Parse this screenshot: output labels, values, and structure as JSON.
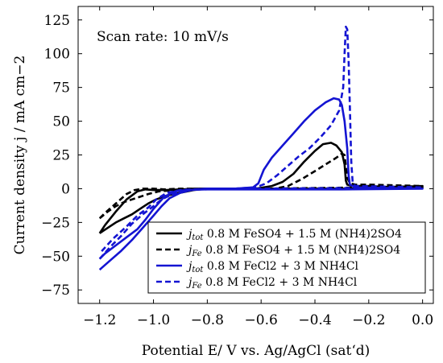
{
  "chart_data": {
    "type": "line",
    "title": "",
    "xlabel": "Potential E/ V vs. Ag/AgCl (sat‘d)",
    "ylabel": "Current density j / mA cm−2",
    "xlim": [
      -1.28,
      0.04
    ],
    "ylim": [
      -85,
      135
    ],
    "x_ticks": [
      -1.2,
      -1.0,
      -0.8,
      -0.6,
      -0.4,
      -0.2,
      0.0
    ],
    "x_tick_labels": [
      "−1.2",
      "−1.0",
      "−0.8",
      "−0.6",
      "−0.4",
      "−0.2",
      "0.0"
    ],
    "y_ticks": [
      -75,
      -50,
      -25,
      0,
      25,
      50,
      75,
      100,
      125
    ],
    "y_tick_labels": [
      "−75",
      "−50",
      "−25",
      "0",
      "25",
      "50",
      "75",
      "100",
      "125"
    ],
    "grid": false,
    "legend_position": "bottom-right",
    "annotation": "Scan rate: 10 mV/s",
    "series": [
      {
        "name": "jtot 0.8 M FeSO4 + 1.5 M (NH4)2SO4",
        "legend_label": {
          "sym": "j",
          "sub": "tot",
          "text": " 0.8 M FeSO4 + 1.5 M (NH4)2SO4"
        },
        "color": "#000000",
        "dash": "solid",
        "points": [
          [
            -1.2,
            -33
          ],
          [
            -1.17,
            -29
          ],
          [
            -1.14,
            -25
          ],
          [
            -1.11,
            -22
          ],
          [
            -1.08,
            -19
          ],
          [
            -1.05,
            -15
          ],
          [
            -1.02,
            -11
          ],
          [
            -0.99,
            -8
          ],
          [
            -0.95,
            -5
          ],
          [
            -0.9,
            -3
          ],
          [
            -0.85,
            -1
          ],
          [
            -0.8,
            0
          ],
          [
            -0.7,
            0
          ],
          [
            -0.62,
            0
          ],
          [
            -0.56,
            2
          ],
          [
            -0.52,
            5
          ],
          [
            -0.48,
            11
          ],
          [
            -0.44,
            20
          ],
          [
            -0.4,
            28
          ],
          [
            -0.37,
            33
          ],
          [
            -0.34,
            34
          ],
          [
            -0.32,
            32
          ],
          [
            -0.3,
            27
          ],
          [
            -0.29,
            18
          ],
          [
            -0.285,
            6
          ],
          [
            -0.28,
            3
          ],
          [
            -0.26,
            2
          ],
          [
            -0.2,
            2
          ],
          [
            -0.1,
            1
          ],
          [
            0.0,
            1
          ],
          [
            -0.1,
            0.5
          ],
          [
            -0.2,
            0.5
          ],
          [
            -0.28,
            0
          ],
          [
            -0.4,
            0
          ],
          [
            -0.6,
            0
          ],
          [
            -0.8,
            0
          ],
          [
            -0.9,
            -0.5
          ],
          [
            -0.95,
            -1
          ],
          [
            -1.0,
            -1
          ],
          [
            -1.03,
            -0.5
          ],
          [
            -1.06,
            -2
          ],
          [
            -1.1,
            -8
          ],
          [
            -1.14,
            -17
          ],
          [
            -1.18,
            -27
          ],
          [
            -1.2,
            -33
          ]
        ]
      },
      {
        "name": "jFe 0.8 M FeSO4 + 1.5 M (NH4)2SO4",
        "legend_label": {
          "sym": "j",
          "sub": "Fe",
          "text": " 0.8 M FeSO4 + 1.5 M (NH4)2SO4"
        },
        "color": "#000000",
        "dash": "dashed",
        "points": [
          [
            -1.2,
            -22
          ],
          [
            -1.17,
            -17
          ],
          [
            -1.14,
            -13
          ],
          [
            -1.11,
            -10
          ],
          [
            -1.08,
            -8
          ],
          [
            -1.05,
            -6
          ],
          [
            -1.02,
            -4
          ],
          [
            -0.98,
            -2
          ],
          [
            -0.92,
            -1
          ],
          [
            -0.85,
            0
          ],
          [
            -0.7,
            0
          ],
          [
            -0.6,
            0
          ],
          [
            -0.55,
            0
          ],
          [
            -0.5,
            2
          ],
          [
            -0.45,
            7
          ],
          [
            -0.4,
            13
          ],
          [
            -0.36,
            18
          ],
          [
            -0.32,
            23
          ],
          [
            -0.3,
            26
          ],
          [
            -0.29,
            25
          ],
          [
            -0.28,
            8
          ],
          [
            -0.27,
            4
          ],
          [
            -0.25,
            3
          ],
          [
            -0.2,
            3
          ],
          [
            0.0,
            2
          ],
          [
            -0.2,
            1
          ],
          [
            -0.4,
            0.5
          ],
          [
            -0.6,
            0
          ],
          [
            -0.8,
            0
          ],
          [
            -0.9,
            0
          ],
          [
            -0.96,
            -0.5
          ],
          [
            -1.0,
            0
          ],
          [
            -1.04,
            0
          ],
          [
            -1.07,
            -1
          ],
          [
            -1.1,
            -4
          ],
          [
            -1.14,
            -11
          ],
          [
            -1.18,
            -18
          ],
          [
            -1.2,
            -22
          ]
        ]
      },
      {
        "name": "jtot 0.8 M FeCl2 + 3 M NH4Cl",
        "legend_label": {
          "sym": "j",
          "sub": "tot",
          "text": " 0.8 M FeCl2 + 3 M NH4Cl"
        },
        "color": "#1414d2",
        "dash": "solid",
        "points": [
          [
            -1.2,
            -60
          ],
          [
            -1.16,
            -53
          ],
          [
            -1.12,
            -46
          ],
          [
            -1.08,
            -38
          ],
          [
            -1.04,
            -29
          ],
          [
            -1.0,
            -20
          ],
          [
            -0.97,
            -13
          ],
          [
            -0.94,
            -7
          ],
          [
            -0.9,
            -3
          ],
          [
            -0.86,
            -1
          ],
          [
            -0.8,
            0
          ],
          [
            -0.7,
            0
          ],
          [
            -0.63,
            1
          ],
          [
            -0.61,
            4
          ],
          [
            -0.59,
            14
          ],
          [
            -0.56,
            23
          ],
          [
            -0.52,
            32
          ],
          [
            -0.48,
            41
          ],
          [
            -0.44,
            50
          ],
          [
            -0.4,
            58
          ],
          [
            -0.36,
            64
          ],
          [
            -0.33,
            67
          ],
          [
            -0.31,
            66
          ],
          [
            -0.3,
            62
          ],
          [
            -0.29,
            50
          ],
          [
            -0.28,
            30
          ],
          [
            -0.275,
            10
          ],
          [
            -0.27,
            3
          ],
          [
            -0.25,
            1
          ],
          [
            0.0,
            0
          ],
          [
            -0.3,
            -0.5
          ],
          [
            -0.6,
            -0.5
          ],
          [
            -0.8,
            -0.5
          ],
          [
            -0.88,
            -1
          ],
          [
            -0.92,
            -2
          ],
          [
            -0.96,
            -6
          ],
          [
            -1.0,
            -15
          ],
          [
            -1.03,
            -23
          ],
          [
            -1.06,
            -30
          ],
          [
            -1.1,
            -36
          ],
          [
            -1.14,
            -42
          ],
          [
            -1.18,
            -48
          ],
          [
            -1.2,
            -52
          ]
        ]
      },
      {
        "name": "jFe 0.8 M FeCl2 + 3 M NH4Cl",
        "legend_label": {
          "sym": "j",
          "sub": "Fe",
          "text": " 0.8 M FeCl2 + 3 M NH4Cl"
        },
        "color": "#1414d2",
        "dash": "dashed",
        "points": [
          [
            -1.2,
            -52
          ],
          [
            -1.16,
            -43
          ],
          [
            -1.12,
            -35
          ],
          [
            -1.08,
            -26
          ],
          [
            -1.04,
            -19
          ],
          [
            -1.0,
            -13
          ],
          [
            -0.97,
            -8
          ],
          [
            -0.94,
            -5
          ],
          [
            -0.9,
            -2
          ],
          [
            -0.86,
            -1
          ],
          [
            -0.8,
            0
          ],
          [
            -0.7,
            0
          ],
          [
            -0.62,
            1
          ],
          [
            -0.58,
            4
          ],
          [
            -0.54,
            10
          ],
          [
            -0.5,
            17
          ],
          [
            -0.46,
            24
          ],
          [
            -0.42,
            30
          ],
          [
            -0.38,
            38
          ],
          [
            -0.34,
            47
          ],
          [
            -0.31,
            58
          ],
          [
            -0.295,
            75
          ],
          [
            -0.29,
            100
          ],
          [
            -0.285,
            120
          ],
          [
            -0.28,
            118
          ],
          [
            -0.275,
            95
          ],
          [
            -0.27,
            60
          ],
          [
            -0.265,
            20
          ],
          [
            -0.26,
            5
          ],
          [
            -0.25,
            2
          ],
          [
            0.0,
            1
          ],
          [
            -0.3,
            0.5
          ],
          [
            -0.6,
            0
          ],
          [
            -0.8,
            0
          ],
          [
            -0.9,
            -1
          ],
          [
            -0.95,
            -3
          ],
          [
            -0.99,
            -8
          ],
          [
            -1.02,
            -14
          ],
          [
            -1.06,
            -20
          ],
          [
            -1.1,
            -28
          ],
          [
            -1.15,
            -37
          ],
          [
            -1.2,
            -48
          ]
        ]
      }
    ]
  }
}
